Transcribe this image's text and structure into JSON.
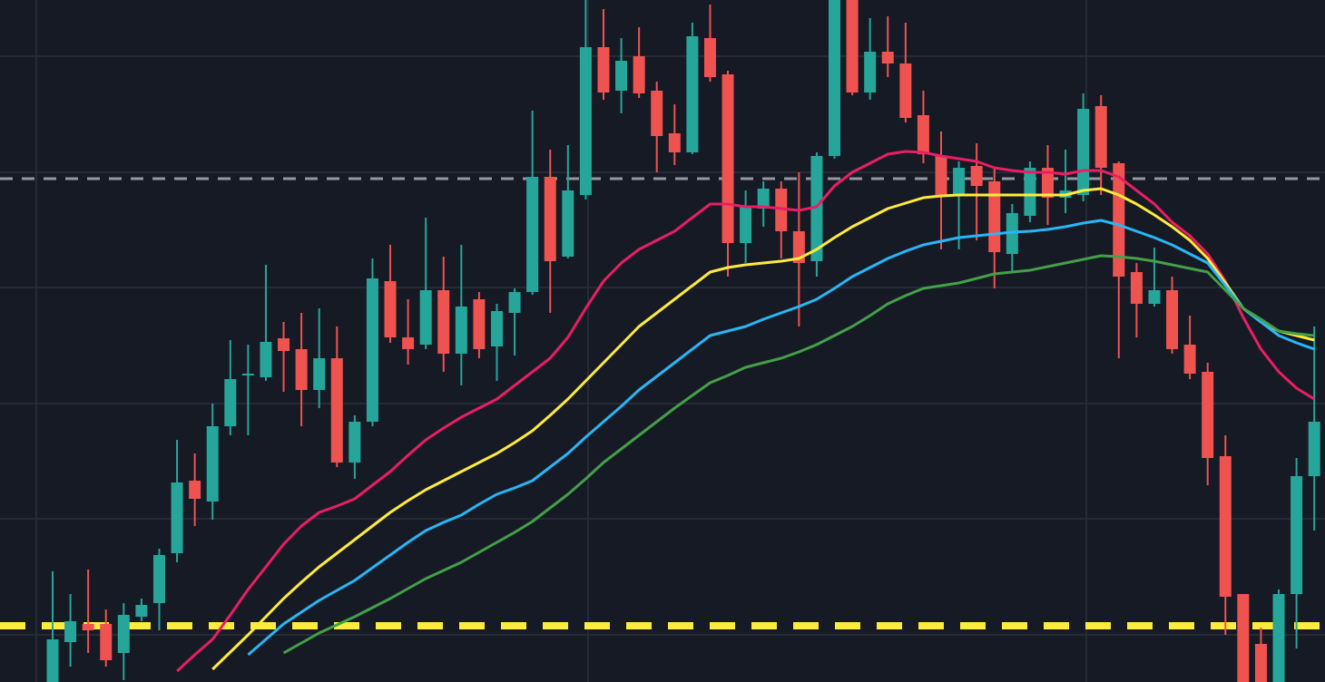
{
  "chart_data": {
    "type": "candlestick",
    "categories": [
      null,
      null,
      null,
      null,
      null,
      null,
      null,
      null,
      null,
      null,
      null,
      null,
      null,
      null,
      null,
      null,
      null,
      null,
      null,
      null,
      null,
      null,
      null,
      null,
      null,
      null,
      null,
      null,
      null,
      null,
      null,
      null,
      null,
      null,
      null,
      null,
      null,
      null,
      null,
      null,
      null,
      null,
      null,
      null,
      null,
      null,
      null,
      null,
      null,
      null,
      null,
      null,
      null,
      null,
      null,
      null,
      null,
      null,
      null,
      null,
      null,
      null,
      null,
      null,
      null,
      null,
      null,
      null,
      null,
      null,
      null,
      null
    ],
    "open": [
      0,
      44,
      64,
      64,
      32,
      72,
      87,
      142,
      222,
      199,
      282,
      338,
      336,
      379,
      367,
      322,
      357,
      242,
      287,
      442,
      380,
      372,
      432,
      362,
      422,
      370,
      407,
      430,
      557,
      469,
      537,
      700,
      652,
      690,
      652,
      605,
      584,
      710,
      670,
      484,
      522,
      544,
      497,
      464,
      580,
      752,
      650,
      695,
      682,
      625,
      580,
      537,
      569,
      552,
      472,
      514,
      567,
      534,
      537,
      635,
      572,
      452,
      417,
      432,
      372,
      342,
      249,
      97,
      42,
      0,
      97,
      227
    ],
    "high": [
      122,
      97,
      124,
      80,
      87,
      92,
      147,
      267,
      252,
      307,
      377,
      372,
      460,
      397,
      407,
      412,
      392,
      294,
      467,
      482,
      422,
      512,
      469,
      482,
      430,
      417,
      434,
      630,
      587,
      592,
      752,
      742,
      710,
      722,
      662,
      637,
      727,
      747,
      674,
      542,
      552,
      552,
      562,
      584,
      752,
      752,
      732,
      734,
      727,
      652,
      607,
      574,
      594,
      567,
      527,
      574,
      592,
      587,
      649,
      647,
      574,
      462,
      479,
      447,
      404,
      352,
      272,
      97,
      60,
      102,
      247,
      392
    ],
    "low": [
      0,
      17,
      32,
      17,
      2,
      67,
      57,
      132,
      172,
      179,
      272,
      272,
      332,
      320,
      282,
      302,
      237,
      224,
      282,
      374,
      350,
      367,
      342,
      327,
      357,
      332,
      360,
      427,
      407,
      467,
      532,
      642,
      627,
      644,
      562,
      570,
      582,
      662,
      447,
      462,
      502,
      467,
      392,
      447,
      577,
      647,
      642,
      667,
      617,
      572,
      477,
      477,
      487,
      434,
      452,
      507,
      504,
      517,
      530,
      537,
      357,
      380,
      414,
      362,
      334,
      217,
      52,
      0,
      0,
      0,
      37,
      167
    ],
    "close": [
      47,
      67,
      57,
      24,
      74,
      85,
      140,
      220,
      202,
      282,
      334,
      340,
      375,
      365,
      322,
      357,
      242,
      287,
      445,
      380,
      367,
      432,
      362,
      414,
      367,
      409,
      430,
      557,
      464,
      542,
      700,
      650,
      685,
      649,
      602,
      584,
      712,
      667,
      484,
      524,
      544,
      497,
      462,
      580,
      752,
      650,
      695,
      682,
      622,
      582,
      537,
      567,
      547,
      474,
      517,
      567,
      534,
      542,
      632,
      567,
      447,
      417,
      432,
      367,
      340,
      247,
      94,
      0,
      0,
      97,
      227,
      287
    ],
    "up_color": "#26a69a",
    "down_color": "#ef5350",
    "moving_averages": [
      {
        "color": "#e91e63",
        "values": [
          null,
          null,
          null,
          null,
          null,
          null,
          null,
          12,
          30,
          47,
          74,
          102,
          127,
          152,
          172,
          187,
          194,
          202,
          217,
          232,
          250,
          267,
          280,
          292,
          302,
          312,
          327,
          342,
          357,
          380,
          412,
          442,
          462,
          477,
          487,
          497,
          512,
          527,
          527,
          524,
          524,
          522,
          520,
          524,
          547,
          562,
          572,
          582,
          585,
          584,
          580,
          577,
          574,
          567,
          564,
          562,
          562,
          560,
          564,
          564,
          557,
          542,
          527,
          507,
          492,
          472,
          442,
          402,
          367,
          342,
          324,
          312
        ]
      },
      {
        "color": "#ffeb3b",
        "values": [
          null,
          null,
          null,
          null,
          null,
          null,
          null,
          null,
          null,
          14,
          33,
          52,
          72,
          92,
          110,
          127,
          142,
          157,
          172,
          187,
          200,
          212,
          222,
          232,
          242,
          252,
          264,
          277,
          294,
          312,
          332,
          352,
          372,
          392,
          407,
          422,
          437,
          452,
          457,
          460,
          462,
          464,
          467,
          477,
          490,
          502,
          512,
          522,
          528,
          534,
          536,
          537,
          537,
          537,
          537,
          537,
          537,
          537,
          542,
          544,
          537,
          527,
          515,
          502,
          487,
          467,
          440,
          412,
          397,
          387,
          382,
          377
        ]
      },
      {
        "color": "#29b6f6",
        "values": [
          null,
          null,
          null,
          null,
          null,
          null,
          null,
          null,
          null,
          null,
          null,
          30,
          47,
          64,
          77,
          90,
          101,
          112,
          126,
          140,
          154,
          167,
          176,
          184,
          196,
          207,
          214,
          222,
          237,
          252,
          270,
          287,
          304,
          322,
          337,
          352,
          367,
          382,
          387,
          392,
          400,
          407,
          414,
          422,
          434,
          447,
          457,
          467,
          475,
          482,
          486,
          490,
          492,
          494,
          496,
          497,
          499,
          502,
          506,
          509,
          504,
          497,
          490,
          482,
          472,
          462,
          437,
          412,
          397,
          382,
          374,
          367
        ]
      },
      {
        "color": "#43a047",
        "values": [
          null,
          null,
          null,
          null,
          null,
          null,
          null,
          null,
          null,
          null,
          null,
          null,
          null,
          32,
          43,
          54,
          63,
          72,
          82,
          92,
          103,
          114,
          123,
          132,
          143,
          154,
          165,
          177,
          192,
          207,
          224,
          242,
          257,
          272,
          287,
          302,
          316,
          330,
          338,
          347,
          352,
          357,
          364,
          372,
          382,
          392,
          404,
          417,
          426,
          434,
          437,
          440,
          445,
          450,
          452,
          454,
          458,
          462,
          466,
          470,
          469,
          467,
          464,
          460,
          456,
          452,
          432,
          412,
          400,
          387,
          384,
          382
        ]
      }
    ],
    "price_lines": [
      {
        "value": 555,
        "color": "#9598a1"
      },
      {
        "value": 62,
        "color": "#ffeb3b"
      }
    ],
    "ylim": [
      0,
      752
    ],
    "yticks": [
      52,
      180,
      307,
      435,
      562,
      690
    ],
    "grid": true
  }
}
